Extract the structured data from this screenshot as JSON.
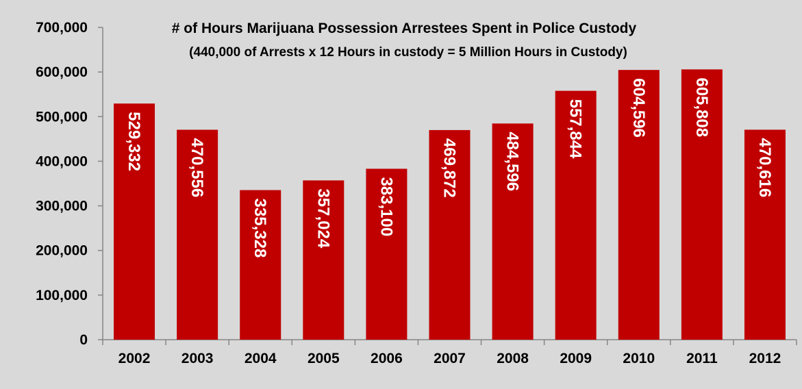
{
  "chart_data": {
    "type": "bar",
    "title": "# of Hours Marijuana Possession Arrestees Spent in Police Custody",
    "subtitle": "(440,000 of Arrests x 12 Hours in custody = 5 Million Hours in Custody)",
    "xlabel": "",
    "ylabel": "",
    "categories": [
      "2002",
      "2003",
      "2004",
      "2005",
      "2006",
      "2007",
      "2008",
      "2009",
      "2010",
      "2011",
      "2012"
    ],
    "values": [
      529332,
      470556,
      335328,
      357024,
      383100,
      469872,
      484596,
      557844,
      604596,
      605808,
      470616
    ],
    "value_labels": [
      "529,332",
      "470,556",
      "335,328",
      "357,024",
      "383,100",
      "469,872",
      "484,596",
      "557,844",
      "604,596",
      "605,808",
      "470,616"
    ],
    "ylim": [
      0,
      700000
    ],
    "y_ticks": [
      0,
      100000,
      200000,
      300000,
      400000,
      500000,
      600000,
      700000
    ],
    "y_tick_labels": [
      "0",
      "100,000",
      "200,000",
      "300,000",
      "400,000",
      "500,000",
      "600,000",
      "700,000"
    ],
    "grid": false,
    "legend": "none",
    "colors": {
      "bar": "#c00000",
      "background": "#d9d9d9",
      "axis": "#868686",
      "text": "#000000",
      "label_text": "#ffffff"
    }
  }
}
